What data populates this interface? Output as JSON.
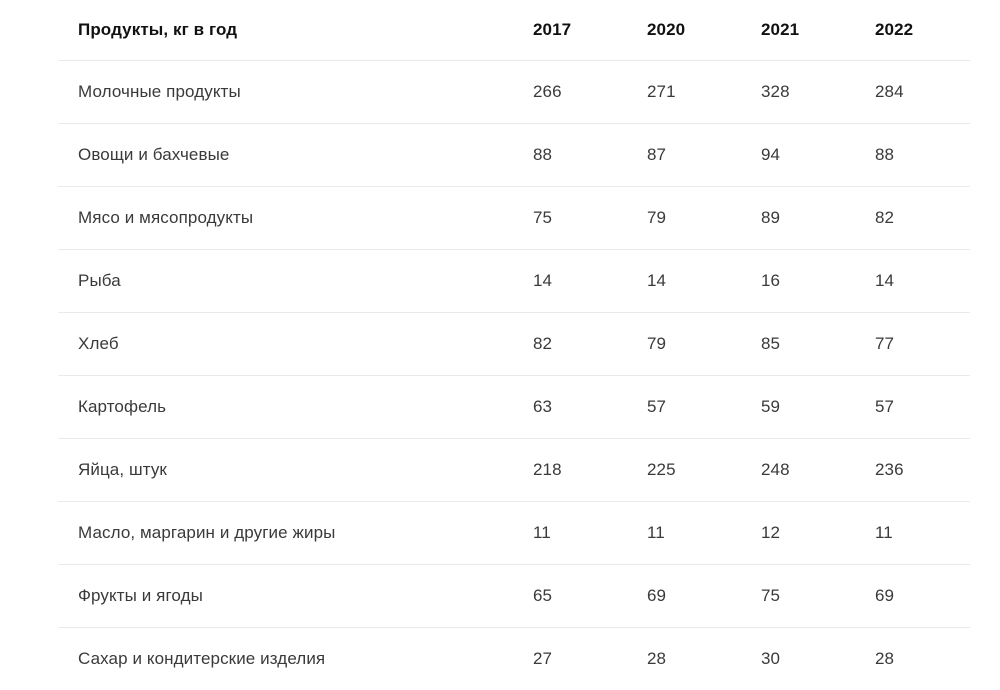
{
  "table": {
    "header": {
      "product_label": "Продукты, кг в год",
      "years": [
        "2017",
        "2020",
        "2021",
        "2022"
      ]
    },
    "rows": [
      {
        "label": "Молочные продукты",
        "values": [
          "266",
          "271",
          "328",
          "284"
        ]
      },
      {
        "label": "Овощи и бахчевые",
        "values": [
          "88",
          "87",
          "94",
          "88"
        ]
      },
      {
        "label": "Мясо и мясопродукты",
        "values": [
          "75",
          "79",
          "89",
          "82"
        ]
      },
      {
        "label": "Рыба",
        "values": [
          "14",
          "14",
          "16",
          "14"
        ]
      },
      {
        "label": "Хлеб",
        "values": [
          "82",
          "79",
          "85",
          "77"
        ]
      },
      {
        "label": "Картофель",
        "values": [
          "63",
          "57",
          "59",
          "57"
        ]
      },
      {
        "label": "Яйца, штук",
        "values": [
          "218",
          "225",
          "248",
          "236"
        ]
      },
      {
        "label": "Масло, маргарин и другие жиры",
        "values": [
          "11",
          "11",
          "12",
          "11"
        ]
      },
      {
        "label": "Фрукты и ягоды",
        "values": [
          "65",
          "69",
          "75",
          "69"
        ]
      },
      {
        "label": "Сахар и кондитерские изделия",
        "values": [
          "27",
          "28",
          "30",
          "28"
        ]
      }
    ]
  },
  "chart_data": {
    "type": "table",
    "title": "Продукты, кг в год",
    "columns": [
      "Продукты, кг в год",
      "2017",
      "2020",
      "2021",
      "2022"
    ],
    "categories": [
      "Молочные продукты",
      "Овощи и бахчевые",
      "Мясо и мясопродукты",
      "Рыба",
      "Хлеб",
      "Картофель",
      "Яйца, штук",
      "Масло, маргарин и другие жиры",
      "Фрукты и ягоды",
      "Сахар и кондитерские изделия"
    ],
    "series": [
      {
        "name": "2017",
        "values": [
          266,
          88,
          75,
          14,
          82,
          63,
          218,
          11,
          65,
          27
        ]
      },
      {
        "name": "2020",
        "values": [
          271,
          87,
          79,
          14,
          79,
          57,
          225,
          11,
          69,
          28
        ]
      },
      {
        "name": "2021",
        "values": [
          328,
          94,
          89,
          16,
          85,
          59,
          248,
          12,
          75,
          30
        ]
      },
      {
        "name": "2022",
        "values": [
          284,
          88,
          82,
          14,
          77,
          57,
          236,
          11,
          69,
          28
        ]
      }
    ]
  },
  "colors": {
    "background": "#ffffff",
    "header_text": "#111111",
    "body_text": "#3a3a3a",
    "divider": "#eaeaea"
  }
}
